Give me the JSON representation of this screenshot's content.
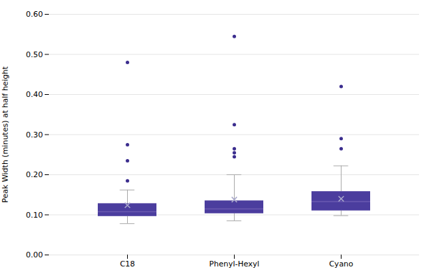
{
  "chart_data": {
    "type": "box",
    "categories": [
      "C18",
      "Phenyl-Hexyl",
      "Cyano"
    ],
    "ylabel": "Peak Width (minutes) at half height",
    "ylim": [
      0,
      0.6
    ],
    "yticks": [
      0,
      0.1,
      0.2,
      0.3,
      0.4,
      0.5,
      0.6
    ],
    "grid": true,
    "q1": [
      0.096,
      0.103,
      0.11
    ],
    "median": [
      0.108,
      0.115,
      0.133
    ],
    "q3": [
      0.128,
      0.135,
      0.158
    ],
    "mean": [
      0.124,
      0.138,
      0.14
    ],
    "whisker_low": [
      0.078,
      0.085,
      0.098
    ],
    "whisker_high": [
      0.162,
      0.2,
      0.222
    ],
    "outliers": [
      [
        0.185,
        0.235,
        0.275,
        0.48
      ],
      [
        0.245,
        0.255,
        0.265,
        0.325,
        0.545
      ],
      [
        0.265,
        0.29,
        0.42
      ]
    ],
    "colors": {
      "box": "#4B3D9E",
      "median": "#6a5ab0",
      "mean": "#aaaacc",
      "whisker": "#aaaaaa",
      "outlier": "#3b2d8e"
    }
  }
}
